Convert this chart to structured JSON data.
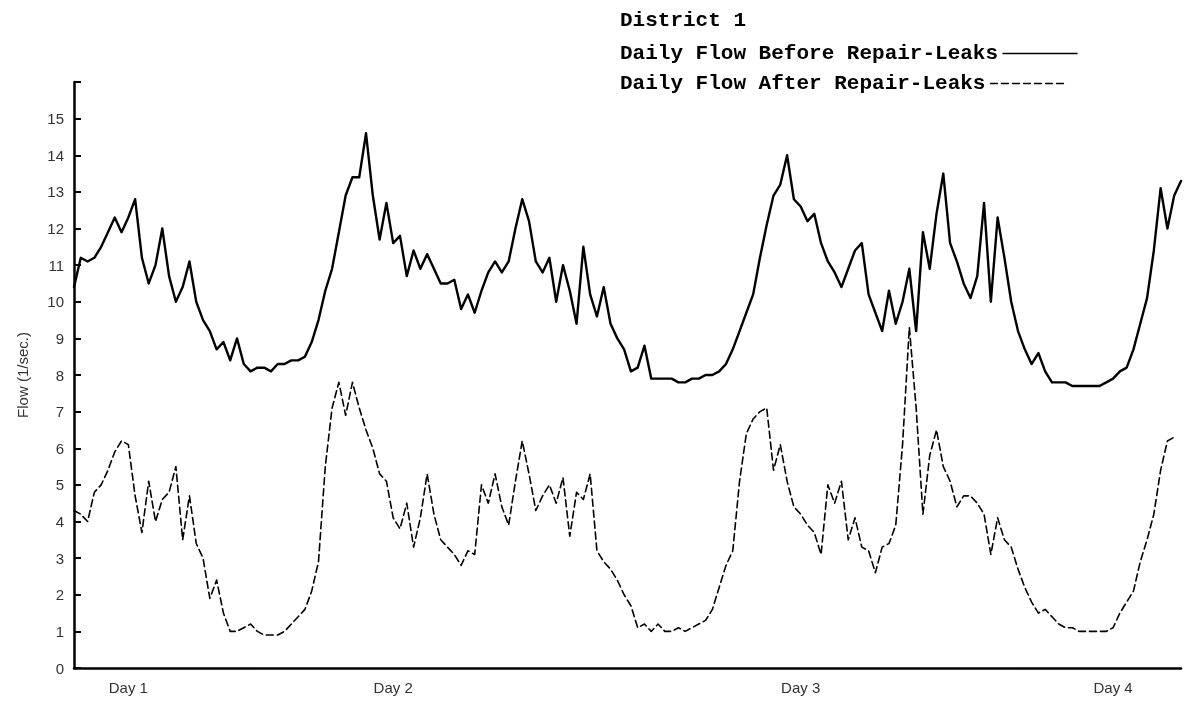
{
  "chart_data": {
    "type": "line",
    "title": "District 1",
    "ylabel": "Flow (1/sec.)",
    "categories": [
      null,
      null,
      null,
      null,
      null,
      null,
      null,
      null,
      "Day 1",
      null,
      null,
      null,
      null,
      null,
      null,
      null,
      null,
      null,
      null,
      null,
      null,
      null,
      null,
      null,
      null,
      null,
      null,
      null,
      null,
      null,
      null,
      null,
      null,
      null,
      null,
      null,
      null,
      null,
      null,
      null,
      null,
      null,
      null,
      null,
      null,
      null,
      null,
      "Day 2",
      null,
      null,
      null,
      null,
      null,
      null,
      null,
      null,
      null,
      null,
      null,
      null,
      null,
      null,
      null,
      null,
      null,
      null,
      null,
      null,
      null,
      null,
      null,
      null,
      null,
      null,
      null,
      null,
      null,
      null,
      null,
      null,
      null,
      null,
      null,
      null,
      null,
      null,
      null,
      null,
      null,
      null,
      null,
      null,
      null,
      null,
      null,
      null,
      null,
      null,
      null,
      null,
      null,
      null,
      null,
      null,
      null,
      null,
      null,
      "Day 3",
      null,
      null,
      null,
      null,
      null,
      null,
      null,
      null,
      null,
      null,
      null,
      null,
      null,
      null,
      null,
      null,
      null,
      null,
      null,
      null,
      null,
      null,
      null,
      null,
      null,
      null,
      null,
      null,
      null,
      null,
      null,
      null,
      null,
      null,
      null,
      null,
      null,
      null,
      null,
      null,
      null,
      null,
      null,
      null,
      null,
      "Day 4",
      null,
      null,
      null,
      null,
      null,
      null,
      null,
      null,
      null,
      null
    ],
    "ylim": [
      0,
      16
    ],
    "yticks": [
      0,
      1,
      2,
      3,
      4,
      5,
      6,
      7,
      8,
      9,
      10,
      11,
      12,
      13,
      14,
      15,
      {
        "value": 16,
        "label": null
      }
    ],
    "legend": "top right",
    "grid": false,
    "marker": "none",
    "series": [
      {
        "name": "Daily Flow Before Repair-Leaks",
        "color": "#000000",
        "line_style": "solid",
        "values": [
          10.4,
          11.2,
          11.1,
          11.2,
          11.5,
          11.9,
          12.3,
          11.9,
          12.3,
          12.8,
          11.2,
          10.5,
          11.0,
          12.0,
          10.7,
          10.0,
          10.4,
          11.1,
          10.0,
          9.5,
          9.2,
          8.7,
          8.9,
          8.4,
          9.0,
          8.3,
          8.1,
          8.2,
          8.2,
          8.1,
          8.3,
          8.3,
          8.4,
          8.4,
          8.5,
          8.9,
          9.5,
          10.3,
          10.9,
          11.9,
          12.9,
          13.4,
          13.4,
          14.6,
          12.9,
          11.7,
          12.7,
          11.6,
          11.8,
          10.7,
          11.4,
          10.9,
          11.3,
          10.9,
          10.5,
          10.5,
          10.6,
          9.8,
          10.2,
          9.7,
          10.3,
          10.8,
          11.1,
          10.8,
          11.1,
          12.0,
          12.8,
          12.2,
          11.1,
          10.8,
          11.2,
          10.0,
          11.0,
          10.3,
          9.4,
          11.5,
          10.2,
          9.6,
          10.4,
          9.4,
          9.0,
          8.7,
          8.1,
          8.2,
          8.8,
          7.9,
          7.9,
          7.9,
          7.9,
          7.8,
          7.8,
          7.9,
          7.9,
          8.0,
          8.0,
          8.1,
          8.3,
          8.7,
          9.2,
          9.7,
          10.2,
          11.2,
          12.1,
          12.9,
          13.2,
          14.0,
          12.8,
          12.6,
          12.2,
          12.4,
          11.6,
          11.1,
          10.8,
          10.4,
          10.9,
          11.4,
          11.6,
          10.2,
          9.7,
          9.2,
          10.3,
          9.4,
          10.0,
          10.9,
          9.2,
          11.9,
          10.9,
          12.4,
          13.5,
          11.6,
          11.1,
          10.5,
          10.1,
          10.7,
          12.7,
          10.0,
          12.3,
          11.2,
          10.0,
          9.2,
          8.7,
          8.3,
          8.6,
          8.1,
          7.8,
          7.8,
          7.8,
          7.7,
          7.7,
          7.7,
          7.7,
          7.7,
          7.8,
          7.9,
          8.1,
          8.2,
          8.7,
          9.4,
          10.1,
          11.4,
          13.1,
          12.0,
          12.9,
          13.3
        ]
      },
      {
        "name": "Daily Flow After Repair-Leaks",
        "color": "#000000",
        "line_style": "dashed",
        "values": [
          4.3,
          4.2,
          4.0,
          4.8,
          5.0,
          5.4,
          5.9,
          6.2,
          6.1,
          4.7,
          3.7,
          5.1,
          4.0,
          4.6,
          4.8,
          5.5,
          3.5,
          4.7,
          3.4,
          3.0,
          1.9,
          2.4,
          1.5,
          1.0,
          1.0,
          1.1,
          1.2,
          1.0,
          0.9,
          0.9,
          0.9,
          1.0,
          1.2,
          1.4,
          1.6,
          2.1,
          2.9,
          5.5,
          7.1,
          7.8,
          6.9,
          7.8,
          7.1,
          6.5,
          6.0,
          5.3,
          5.1,
          4.1,
          3.8,
          4.5,
          3.3,
          4.1,
          5.3,
          4.2,
          3.5,
          3.3,
          3.1,
          2.8,
          3.2,
          3.1,
          5.0,
          4.5,
          5.3,
          4.4,
          3.9,
          5.1,
          6.2,
          5.3,
          4.3,
          4.7,
          5.0,
          4.5,
          5.2,
          3.6,
          4.8,
          4.6,
          5.3,
          3.2,
          2.9,
          2.7,
          2.4,
          2.0,
          1.7,
          1.1,
          1.2,
          1.0,
          1.2,
          1.0,
          1.0,
          1.1,
          1.0,
          1.1,
          1.2,
          1.3,
          1.6,
          2.2,
          2.8,
          3.2,
          5.1,
          6.4,
          6.8,
          7.0,
          7.1,
          5.4,
          6.1,
          5.1,
          4.4,
          4.2,
          3.9,
          3.7,
          3.1,
          5.0,
          4.5,
          5.1,
          3.5,
          4.1,
          3.3,
          3.2,
          2.6,
          3.3,
          3.4,
          3.9,
          6.1,
          9.3,
          7.1,
          4.2,
          5.8,
          6.5,
          5.5,
          5.1,
          4.4,
          4.7,
          4.7,
          4.5,
          4.2,
          3.1,
          4.1,
          3.5,
          3.3,
          2.7,
          2.2,
          1.8,
          1.5,
          1.6,
          1.4,
          1.2,
          1.1,
          1.1,
          1.0,
          1.0,
          1.0,
          1.0,
          1.0,
          1.1,
          1.5,
          1.8,
          2.1,
          2.9,
          3.5,
          4.2,
          5.4,
          6.2,
          6.3,
          null
        ]
      }
    ]
  }
}
